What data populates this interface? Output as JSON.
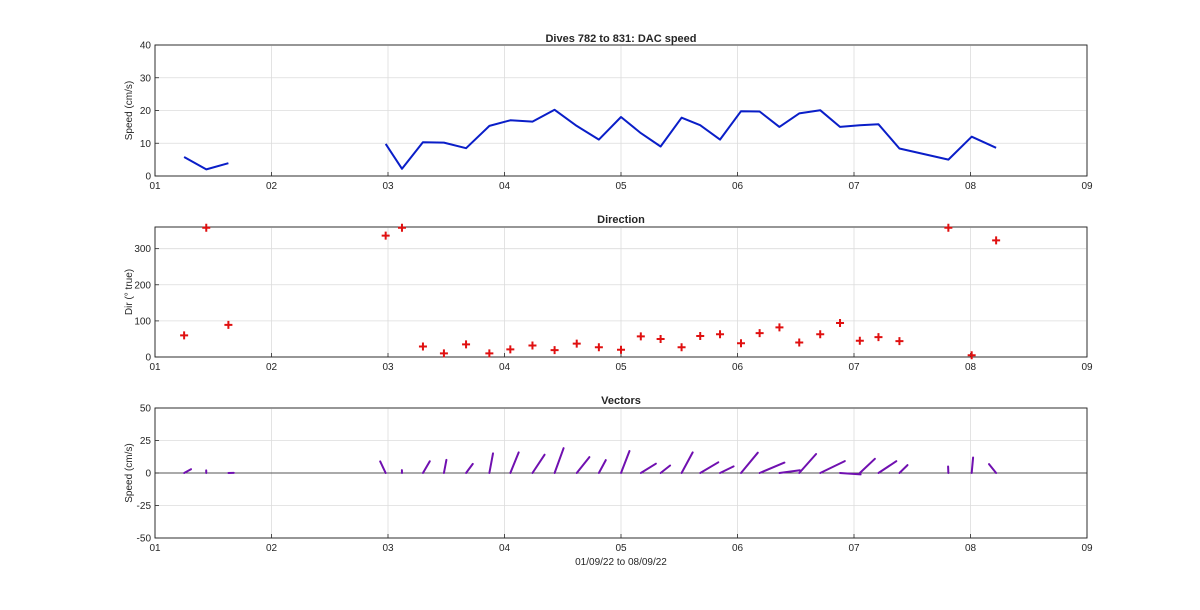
{
  "figure": {
    "xlabel": "01/09/22 to 08/09/22"
  },
  "chart_data": [
    {
      "type": "line",
      "title": "Dives 782 to 831: DAC speed",
      "ylabel": "Speed (cm/s)",
      "xlabel": "",
      "xlim": [
        1,
        9
      ],
      "ylim": [
        0,
        40
      ],
      "xticks": [
        1,
        2,
        3,
        4,
        5,
        6,
        7,
        8,
        9
      ],
      "xticklabels": [
        "01",
        "02",
        "03",
        "04",
        "05",
        "06",
        "07",
        "08",
        "09"
      ],
      "yticks": [
        0,
        10,
        20,
        30,
        40
      ],
      "grid": true,
      "color": "#0a1ec8",
      "series": [
        {
          "segments": [
            [
              [
                1.25,
                5.8
              ],
              [
                1.44,
                2.0
              ],
              [
                1.63,
                3.9
              ]
            ],
            [
              [
                2.98,
                9.8
              ],
              [
                3.12,
                2.2
              ],
              [
                3.3,
                10.3
              ],
              [
                3.48,
                10.2
              ],
              [
                3.67,
                8.5
              ],
              [
                3.87,
                15.3
              ],
              [
                4.05,
                17.0
              ],
              [
                4.24,
                16.6
              ],
              [
                4.43,
                20.2
              ],
              [
                4.62,
                15.3
              ],
              [
                4.81,
                11.1
              ],
              [
                5.0,
                18.0
              ],
              [
                5.17,
                13.1
              ],
              [
                5.34,
                9.0
              ],
              [
                5.52,
                17.8
              ],
              [
                5.68,
                15.5
              ],
              [
                5.85,
                11.1
              ],
              [
                6.03,
                19.8
              ],
              [
                6.19,
                19.7
              ],
              [
                6.36,
                15.0
              ],
              [
                6.53,
                19.1
              ],
              [
                6.71,
                20.1
              ],
              [
                6.88,
                15.0
              ],
              [
                7.05,
                15.5
              ],
              [
                7.21,
                15.8
              ],
              [
                7.39,
                8.4
              ],
              [
                7.81,
                5.0
              ],
              [
                8.01,
                12.0
              ],
              [
                8.22,
                8.6
              ]
            ]
          ]
        }
      ]
    },
    {
      "type": "scatter",
      "title": "Direction",
      "ylabel": "Dir (° true)",
      "xlabel": "",
      "xlim": [
        1,
        9
      ],
      "ylim": [
        0,
        360
      ],
      "xticks": [
        1,
        2,
        3,
        4,
        5,
        6,
        7,
        8,
        9
      ],
      "xticklabels": [
        "01",
        "02",
        "03",
        "04",
        "05",
        "06",
        "07",
        "08",
        "09"
      ],
      "yticks": [
        0,
        100,
        200,
        300
      ],
      "grid": true,
      "marker": "+",
      "color": "#e01010",
      "points": [
        [
          1.25,
          60
        ],
        [
          1.44,
          358
        ],
        [
          1.63,
          89
        ],
        [
          2.98,
          336
        ],
        [
          3.12,
          358
        ],
        [
          3.3,
          29
        ],
        [
          3.48,
          10
        ],
        [
          3.67,
          35
        ],
        [
          3.87,
          10
        ],
        [
          4.05,
          21
        ],
        [
          4.24,
          32
        ],
        [
          4.43,
          19
        ],
        [
          4.62,
          37
        ],
        [
          4.81,
          27
        ],
        [
          5.0,
          20
        ],
        [
          5.17,
          57
        ],
        [
          5.34,
          50
        ],
        [
          5.52,
          27
        ],
        [
          5.68,
          58
        ],
        [
          5.85,
          63
        ],
        [
          6.03,
          38
        ],
        [
          6.19,
          66
        ],
        [
          6.36,
          82
        ],
        [
          6.53,
          40
        ],
        [
          6.71,
          63
        ],
        [
          6.88,
          94
        ],
        [
          7.05,
          45
        ],
        [
          7.21,
          55
        ],
        [
          7.39,
          44
        ],
        [
          7.81,
          358
        ],
        [
          8.01,
          5
        ],
        [
          8.22,
          323
        ]
      ]
    },
    {
      "type": "vectors",
      "title": "Vectors",
      "ylabel": "Speed (cm/s)",
      "xlabel": "01/09/22 to 08/09/22",
      "xlim": [
        1,
        9
      ],
      "ylim": [
        -50,
        50
      ],
      "xticks": [
        1,
        2,
        3,
        4,
        5,
        6,
        7,
        8,
        9
      ],
      "xticklabels": [
        "01",
        "02",
        "03",
        "04",
        "05",
        "06",
        "07",
        "08",
        "09"
      ],
      "yticks": [
        -50,
        -25,
        0,
        25,
        50
      ],
      "grid": true,
      "color": "#7010b0",
      "days_per_cm_s": 0.0118,
      "vectors": [
        [
          1.25,
          5.8,
          60
        ],
        [
          1.44,
          2.0,
          358
        ],
        [
          1.63,
          3.9,
          89
        ],
        [
          2.98,
          9.8,
          336
        ],
        [
          3.12,
          2.2,
          358
        ],
        [
          3.3,
          10.3,
          29
        ],
        [
          3.48,
          10.2,
          10
        ],
        [
          3.67,
          8.5,
          35
        ],
        [
          3.87,
          15.3,
          10
        ],
        [
          4.05,
          17.0,
          21
        ],
        [
          4.24,
          16.6,
          32
        ],
        [
          4.43,
          20.2,
          19
        ],
        [
          4.62,
          15.3,
          37
        ],
        [
          4.81,
          11.1,
          27
        ],
        [
          5.0,
          18.0,
          20
        ],
        [
          5.17,
          13.1,
          57
        ],
        [
          5.34,
          9.0,
          50
        ],
        [
          5.52,
          17.8,
          27
        ],
        [
          5.68,
          15.5,
          58
        ],
        [
          5.85,
          11.1,
          63
        ],
        [
          6.03,
          19.8,
          38
        ],
        [
          6.19,
          19.7,
          66
        ],
        [
          6.36,
          15.0,
          82
        ],
        [
          6.53,
          19.1,
          40
        ],
        [
          6.71,
          20.1,
          63
        ],
        [
          6.88,
          15.0,
          94
        ],
        [
          7.05,
          15.5,
          45
        ],
        [
          7.21,
          15.8,
          55
        ],
        [
          7.39,
          8.4,
          44
        ],
        [
          7.81,
          5.0,
          358
        ],
        [
          8.01,
          12.0,
          5
        ],
        [
          8.22,
          8.6,
          323
        ]
      ]
    }
  ]
}
